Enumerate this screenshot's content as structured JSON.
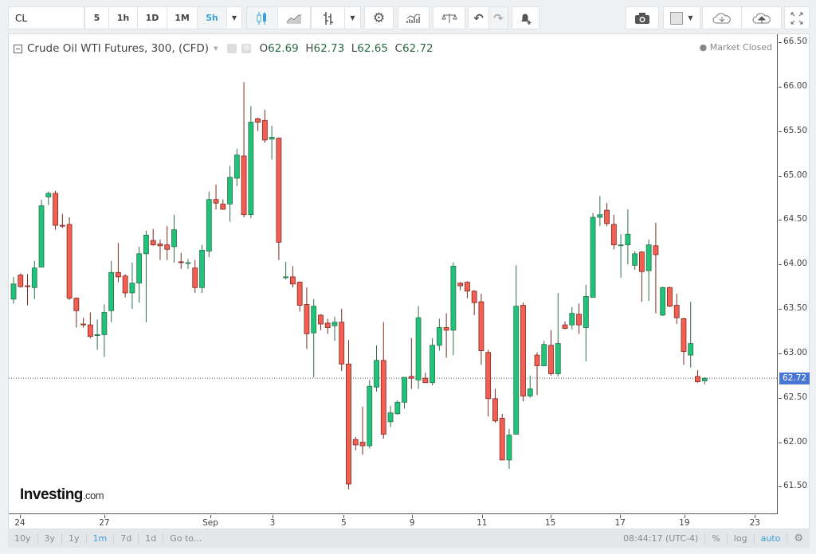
{
  "toolbar": {
    "symbol": "CL",
    "intervals": [
      "5",
      "1h",
      "1D",
      "1M",
      "5h"
    ],
    "active_interval": "5h",
    "icons": [
      "chevron-down-icon",
      "candlestick-icon",
      "line-chart-icon",
      "bars-icon",
      "chevron-down-icon",
      "gear-icon",
      "indicators-icon",
      "compare-icon",
      "undo-icon",
      "redo-icon",
      "alert-add-icon",
      "camera-icon",
      "color-square-icon",
      "cloud-download-icon",
      "cloud-upload-icon",
      "fullscreen-icon"
    ]
  },
  "legend": {
    "title": "Crude Oil WTI Futures, 300, (CFD)",
    "open_label": "O",
    "open": "62.69",
    "high_label": "H",
    "high": "62.73",
    "low_label": "L",
    "low": "62.65",
    "close_label": "C",
    "close": "62.72",
    "market_status": "● Market Closed"
  },
  "logo": {
    "brand": "Investing",
    "suffix": ".com"
  },
  "bottom_bar": {
    "ranges": [
      "10y",
      "3y",
      "1y",
      "1m",
      "7d",
      "1d"
    ],
    "active_range": "1m",
    "goto": "Go to...",
    "time": "08:44:17 (UTC-4)",
    "percent": "%",
    "log": "log",
    "auto": "auto"
  },
  "colors": {
    "up": "#1fc47a",
    "down": "#f45f52",
    "last_price": "#4a77d4",
    "active": "#3aa0d8"
  },
  "chart_data": {
    "type": "candlestick",
    "title": "Crude Oil WTI Futures, 300, (CFD)",
    "ylim": [
      61.19,
      66.59
    ],
    "yticks": [
      "66.50",
      "66.00",
      "65.50",
      "65.00",
      "64.50",
      "64.00",
      "63.50",
      "63.00",
      "62.50",
      "62.00",
      "61.50"
    ],
    "last_price": "62.72",
    "xticks": [
      {
        "label": "24",
        "bar": 0.9
      },
      {
        "label": "27",
        "bar": 13
      },
      {
        "label": "Sep",
        "bar": 28.2
      },
      {
        "label": "3",
        "bar": 37.1
      },
      {
        "label": "5",
        "bar": 47.3
      },
      {
        "label": "9",
        "bar": 57.1
      },
      {
        "label": "11",
        "bar": 67.1
      },
      {
        "label": "15",
        "bar": 76.9
      },
      {
        "label": "17",
        "bar": 86.9
      },
      {
        "label": "19",
        "bar": 96.1
      },
      {
        "label": "23",
        "bar": 106.2
      }
    ],
    "ohlc": [
      [
        63.61,
        63.86,
        63.56,
        63.78
      ],
      [
        63.88,
        63.9,
        63.74,
        63.75
      ],
      [
        63.76,
        63.89,
        63.54,
        63.75
      ],
      [
        63.74,
        64.04,
        63.61,
        63.96
      ],
      [
        63.97,
        64.73,
        63.97,
        64.66
      ],
      [
        64.76,
        64.82,
        64.67,
        64.8
      ],
      [
        64.8,
        64.83,
        64.39,
        64.44
      ],
      [
        64.44,
        64.57,
        64.41,
        64.43
      ],
      [
        64.45,
        64.53,
        63.6,
        63.62
      ],
      [
        63.62,
        63.63,
        63.29,
        63.48
      ],
      [
        63.33,
        63.4,
        63.29,
        63.32
      ],
      [
        63.32,
        63.46,
        63.17,
        63.19
      ],
      [
        63.2,
        63.38,
        63.04,
        63.21
      ],
      [
        63.21,
        63.55,
        62.96,
        63.46
      ],
      [
        63.48,
        64.04,
        63.35,
        63.91
      ],
      [
        63.91,
        64.24,
        63.8,
        63.86
      ],
      [
        63.87,
        63.89,
        63.63,
        63.68
      ],
      [
        63.68,
        64.02,
        63.5,
        63.79
      ],
      [
        63.79,
        64.2,
        63.57,
        64.12
      ],
      [
        64.12,
        64.38,
        63.35,
        64.33
      ],
      [
        64.27,
        64.4,
        64.21,
        64.22
      ],
      [
        64.23,
        64.28,
        64.05,
        64.21
      ],
      [
        64.22,
        64.43,
        64.05,
        64.17
      ],
      [
        64.2,
        64.56,
        64.02,
        64.39
      ],
      [
        64.03,
        64.13,
        63.95,
        64.02
      ],
      [
        64.02,
        64.06,
        63.95,
        64.02
      ],
      [
        63.96,
        64.05,
        63.68,
        63.74
      ],
      [
        63.74,
        64.22,
        63.68,
        64.16
      ],
      [
        64.15,
        64.82,
        64.08,
        64.73
      ],
      [
        64.73,
        64.9,
        64.62,
        64.69
      ],
      [
        64.68,
        64.73,
        64.62,
        64.62
      ],
      [
        64.68,
        65.11,
        64.48,
        64.98
      ],
      [
        64.97,
        65.3,
        64.88,
        65.23
      ],
      [
        65.22,
        66.05,
        64.53,
        64.56
      ],
      [
        64.56,
        65.78,
        64.52,
        65.6
      ],
      [
        65.64,
        65.65,
        65.5,
        65.6
      ],
      [
        65.62,
        65.74,
        65.37,
        65.4
      ],
      [
        65.41,
        65.56,
        65.18,
        65.43
      ],
      [
        65.42,
        65.43,
        64.05,
        64.25
      ],
      [
        63.85,
        64.03,
        63.83,
        63.86
      ],
      [
        63.86,
        63.98,
        63.74,
        63.78
      ],
      [
        63.8,
        63.81,
        63.47,
        63.54
      ],
      [
        63.55,
        63.74,
        63.05,
        63.22
      ],
      [
        63.23,
        63.61,
        62.73,
        63.53
      ],
      [
        63.43,
        63.44,
        63.26,
        63.33
      ],
      [
        63.34,
        63.39,
        63.22,
        63.29
      ],
      [
        63.31,
        63.41,
        63.14,
        63.35
      ],
      [
        63.35,
        63.5,
        62.8,
        62.88
      ],
      [
        62.88,
        63.15,
        61.47,
        61.53
      ],
      [
        62.03,
        62.06,
        61.91,
        61.97
      ],
      [
        62.0,
        62.4,
        61.86,
        61.96
      ],
      [
        61.96,
        62.7,
        61.93,
        62.63
      ],
      [
        62.62,
        63.09,
        62.57,
        62.92
      ],
      [
        62.92,
        63.35,
        62.04,
        62.09
      ],
      [
        62.23,
        62.41,
        62.17,
        62.33
      ],
      [
        62.32,
        62.47,
        62.31,
        62.45
      ],
      [
        62.45,
        62.73,
        62.38,
        62.73
      ],
      [
        62.74,
        63.17,
        62.6,
        62.72
      ],
      [
        62.7,
        63.53,
        62.6,
        63.4
      ],
      [
        62.72,
        62.78,
        62.67,
        62.67
      ],
      [
        62.67,
        63.17,
        62.64,
        63.09
      ],
      [
        63.09,
        63.39,
        63.03,
        63.29
      ],
      [
        63.29,
        63.45,
        62.95,
        63.26
      ],
      [
        63.26,
        64.02,
        62.98,
        63.98
      ],
      [
        63.79,
        63.8,
        63.71,
        63.76
      ],
      [
        63.8,
        63.81,
        63.62,
        63.7
      ],
      [
        63.7,
        63.71,
        63.43,
        63.57
      ],
      [
        63.58,
        63.67,
        62.87,
        63.03
      ],
      [
        63.01,
        63.04,
        62.29,
        62.49
      ],
      [
        62.49,
        62.6,
        62.22,
        62.24
      ],
      [
        62.27,
        62.32,
        61.8,
        61.8
      ],
      [
        61.8,
        62.15,
        61.7,
        62.08
      ],
      [
        62.09,
        63.99,
        62.09,
        63.53
      ],
      [
        63.54,
        63.57,
        62.46,
        62.52
      ],
      [
        62.52,
        62.75,
        62.5,
        62.6
      ],
      [
        62.98,
        63.01,
        62.53,
        62.86
      ],
      [
        62.86,
        63.14,
        62.86,
        63.1
      ],
      [
        63.09,
        63.26,
        62.75,
        62.77
      ],
      [
        62.77,
        63.68,
        62.74,
        63.11
      ],
      [
        63.32,
        63.36,
        63.27,
        63.28
      ],
      [
        63.32,
        63.52,
        63.27,
        63.45
      ],
      [
        63.44,
        63.56,
        63.22,
        63.32
      ],
      [
        63.29,
        63.77,
        62.91,
        63.64
      ],
      [
        63.63,
        64.58,
        63.63,
        64.53
      ],
      [
        64.53,
        64.77,
        64.43,
        64.56
      ],
      [
        64.61,
        64.69,
        64.43,
        64.46
      ],
      [
        64.45,
        64.56,
        64.17,
        64.22
      ],
      [
        64.21,
        64.34,
        63.85,
        64.22
      ],
      [
        64.22,
        64.62,
        64.0,
        64.34
      ],
      [
        63.99,
        64.15,
        63.94,
        64.12
      ],
      [
        64.14,
        64.15,
        63.58,
        63.92
      ],
      [
        63.93,
        64.28,
        63.59,
        64.22
      ],
      [
        64.21,
        64.47,
        63.45,
        64.11
      ],
      [
        63.43,
        63.75,
        63.42,
        63.74
      ],
      [
        63.74,
        63.75,
        63.52,
        63.53
      ],
      [
        63.54,
        63.67,
        63.33,
        63.4
      ],
      [
        63.39,
        63.4,
        62.87,
        63.02
      ],
      [
        62.98,
        63.58,
        62.84,
        63.11
      ],
      [
        62.74,
        62.81,
        62.67,
        62.68
      ],
      [
        62.69,
        62.73,
        62.65,
        62.72
      ]
    ]
  }
}
